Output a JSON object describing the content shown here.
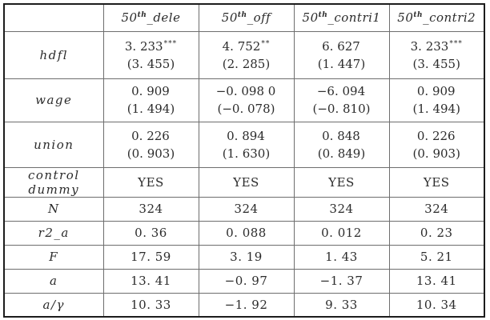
{
  "table": {
    "columns": [
      {
        "prefix": "50",
        "sup": "th",
        "suffix": "_dele"
      },
      {
        "prefix": "50",
        "sup": "th",
        "suffix": "_off"
      },
      {
        "prefix": "50",
        "sup": "th",
        "suffix": "_contri1"
      },
      {
        "prefix": "50",
        "sup": "th",
        "suffix": "_contri2"
      }
    ],
    "coef_rows": [
      {
        "label": "hdfl",
        "cells": [
          {
            "est": "3. 233",
            "stars": "***",
            "t": "(3. 455)"
          },
          {
            "est": "4. 752",
            "stars": "**",
            "t": "(2. 285)"
          },
          {
            "est": "6. 627",
            "stars": "",
            "t": "(1. 447)"
          },
          {
            "est": "3. 233",
            "stars": "***",
            "t": "(3. 455)"
          }
        ]
      },
      {
        "label": "wage",
        "cells": [
          {
            "est": "0. 909",
            "stars": "",
            "t": "(1. 494)"
          },
          {
            "est": "−0. 098 0",
            "stars": "",
            "t": "(−0. 078)"
          },
          {
            "est": "−6. 094",
            "stars": "",
            "t": "(−0. 810)"
          },
          {
            "est": "0. 909",
            "stars": "",
            "t": "(1. 494)"
          }
        ]
      },
      {
        "label": "union",
        "cells": [
          {
            "est": "0. 226",
            "stars": "",
            "t": "(0. 903)"
          },
          {
            "est": "0. 894",
            "stars": "",
            "t": "(1. 630)"
          },
          {
            "est": "0. 848",
            "stars": "",
            "t": "(0. 849)"
          },
          {
            "est": "0. 226",
            "stars": "",
            "t": "(0. 903)"
          }
        ]
      }
    ],
    "stat_rows": [
      {
        "label": "control dummy",
        "values": [
          "YES",
          "YES",
          "YES",
          "YES"
        ]
      },
      {
        "label": "N",
        "values": [
          "324",
          "324",
          "324",
          "324"
        ]
      },
      {
        "label": "r2_a",
        "values": [
          "0. 36",
          "0. 088",
          "0. 012",
          "0. 23"
        ]
      },
      {
        "label": "F",
        "values": [
          "17. 59",
          "3. 19",
          "1. 43",
          "5. 21"
        ]
      },
      {
        "label": "a",
        "values": [
          "13. 41",
          "−0. 97",
          "−1. 37",
          "13. 41"
        ]
      },
      {
        "label": "a/γ",
        "values": [
          "10. 33",
          "−1. 92",
          "9. 33",
          "10. 34"
        ]
      }
    ]
  }
}
